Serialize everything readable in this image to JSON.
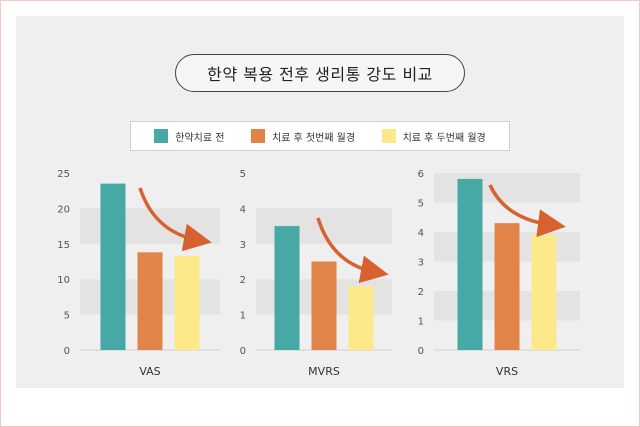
{
  "title": "한약 복용 전후 생리통 강도 비교",
  "legend": [
    {
      "label": "한약치료 전",
      "color": "#46a9a6"
    },
    {
      "label": "치료 후 첫번째 월경",
      "color": "#e2844a"
    },
    {
      "label": "치료 후 두번째 월경",
      "color": "#fde98a"
    }
  ],
  "chart_data": [
    {
      "type": "bar",
      "xlabel": "VAS",
      "categories": [
        "한약치료 전",
        "치료 후 첫번째 월경",
        "치료 후 두번째 월경"
      ],
      "values": [
        23.5,
        13.8,
        13.3
      ],
      "ylim": [
        0,
        25
      ],
      "yticks": [
        "0",
        "5",
        "10",
        "15",
        "20",
        "25"
      ]
    },
    {
      "type": "bar",
      "xlabel": "MVRS",
      "categories": [
        "한약치료 전",
        "치료 후 첫번째 월경",
        "치료 후 두번째 월경"
      ],
      "values": [
        3.5,
        2.5,
        1.8
      ],
      "ylim": [
        0,
        5
      ],
      "yticks": [
        "0",
        "1",
        "2",
        "3",
        "4",
        "5"
      ]
    },
    {
      "type": "bar",
      "xlabel": "VRS",
      "categories": [
        "한약치료 전",
        "치료 후 첫번째 월경",
        "치료 후 두번째 월경"
      ],
      "values": [
        5.8,
        4.3,
        3.9
      ],
      "ylim": [
        0,
        6
      ],
      "yticks": [
        "0",
        "1",
        "2",
        "3",
        "4",
        "5",
        "6"
      ]
    }
  ]
}
